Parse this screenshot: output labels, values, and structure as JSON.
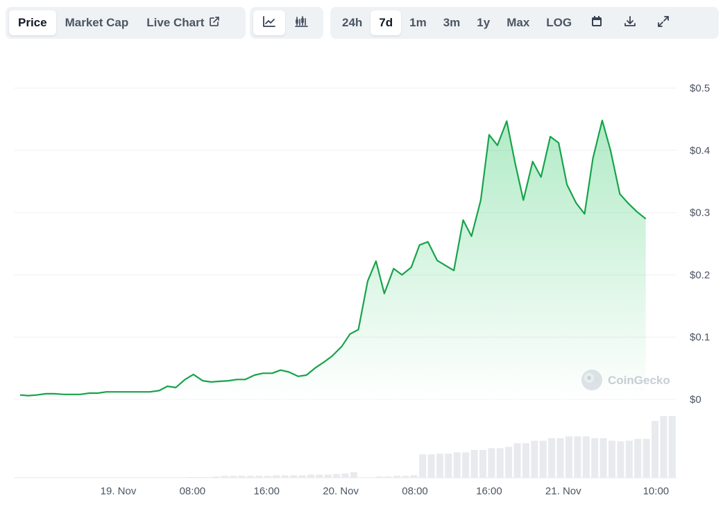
{
  "toolbar": {
    "views": [
      "Price",
      "Market Cap",
      "Live Chart"
    ],
    "active_view": "Price",
    "chart_modes": [
      "line-chart-icon",
      "candlestick-chart-icon"
    ],
    "active_mode": "line-chart-icon",
    "ranges": [
      "24h",
      "7d",
      "1m",
      "3m",
      "1y",
      "Max",
      "LOG"
    ],
    "active_range": "7d",
    "tools": [
      "calendar-icon",
      "download-icon",
      "expand-icon"
    ]
  },
  "watermark": "CoinGecko",
  "colors": {
    "line": "#16a34a",
    "fill": "#22c55e",
    "volume": "#e8eaee",
    "grid": "#eef0f3",
    "axis_text": "#4b5563"
  },
  "chart_data": {
    "type": "area",
    "x_tick_labels": [
      "19. Nov",
      "08:00",
      "16:00",
      "20. Nov",
      "08:00",
      "16:00",
      "21. Nov",
      "10:00"
    ],
    "x_tick_hours": [
      0,
      8,
      16,
      24,
      32,
      40,
      48,
      58
    ],
    "y_tick_labels": [
      "$0",
      "$0.1",
      "$0.2",
      "$0.3",
      "$0.4",
      "$0.5"
    ],
    "ylim": [
      0,
      0.5
    ],
    "y_scale": "linear",
    "grid": true,
    "series": [
      {
        "values": [
          [
            -10.6,
            0.007
          ],
          [
            -9.7,
            0.006
          ],
          [
            -8.8,
            0.007
          ],
          [
            -7.8,
            0.009
          ],
          [
            -6.9,
            0.009
          ],
          [
            -5.9,
            0.008
          ],
          [
            -5.0,
            0.008
          ],
          [
            -4.1,
            0.008
          ],
          [
            -3.1,
            0.01
          ],
          [
            -2.2,
            0.01
          ],
          [
            -1.3,
            0.012
          ],
          [
            -0.3,
            0.012
          ],
          [
            0.6,
            0.012
          ],
          [
            1.6,
            0.012
          ],
          [
            2.5,
            0.012
          ],
          [
            3.4,
            0.012
          ],
          [
            4.4,
            0.014
          ],
          [
            5.3,
            0.021
          ],
          [
            6.2,
            0.019
          ],
          [
            7.2,
            0.032
          ],
          [
            8.1,
            0.04
          ],
          [
            9.1,
            0.03
          ],
          [
            10.0,
            0.028
          ],
          [
            10.9,
            0.029
          ],
          [
            11.9,
            0.03
          ],
          [
            12.8,
            0.032
          ],
          [
            13.7,
            0.032
          ],
          [
            14.7,
            0.039
          ],
          [
            15.6,
            0.042
          ],
          [
            16.6,
            0.042
          ],
          [
            17.5,
            0.047
          ],
          [
            18.4,
            0.044
          ],
          [
            19.4,
            0.037
          ],
          [
            20.3,
            0.039
          ],
          [
            21.2,
            0.05
          ],
          [
            22.2,
            0.06
          ],
          [
            23.1,
            0.07
          ],
          [
            24.1,
            0.085
          ],
          [
            25.0,
            0.105
          ],
          [
            25.9,
            0.112
          ],
          [
            26.9,
            0.19
          ],
          [
            27.8,
            0.222
          ],
          [
            28.7,
            0.17
          ],
          [
            29.7,
            0.21
          ],
          [
            30.6,
            0.2
          ],
          [
            31.6,
            0.212
          ],
          [
            32.5,
            0.248
          ],
          [
            33.4,
            0.253
          ],
          [
            34.4,
            0.223
          ],
          [
            35.3,
            0.215
          ],
          [
            36.2,
            0.207
          ],
          [
            37.2,
            0.288
          ],
          [
            38.1,
            0.262
          ],
          [
            39.1,
            0.32
          ],
          [
            40.0,
            0.425
          ],
          [
            40.9,
            0.408
          ],
          [
            41.9,
            0.447
          ],
          [
            42.8,
            0.38
          ],
          [
            43.7,
            0.32
          ],
          [
            44.7,
            0.382
          ],
          [
            45.6,
            0.357
          ],
          [
            46.6,
            0.422
          ],
          [
            47.5,
            0.412
          ],
          [
            48.4,
            0.345
          ],
          [
            49.4,
            0.315
          ],
          [
            50.3,
            0.298
          ],
          [
            51.2,
            0.387
          ],
          [
            52.2,
            0.448
          ],
          [
            53.1,
            0.4
          ],
          [
            54.1,
            0.33
          ],
          [
            55.0,
            0.315
          ],
          [
            55.9,
            0.302
          ],
          [
            56.9,
            0.29
          ]
        ]
      }
    ],
    "volume_relative": [
      0.0,
      0.0,
      0.0,
      0.0,
      0.0,
      0.0,
      0.0,
      0.0,
      0.0,
      0.0,
      0.0,
      0.0,
      0.0,
      0.0,
      0.0,
      0.0,
      0.0,
      0.0,
      0.0,
      0.0,
      0.01,
      0.01,
      0.01,
      0.02,
      0.03,
      0.03,
      0.03,
      0.03,
      0.03,
      0.03,
      0.04,
      0.04,
      0.04,
      0.04,
      0.05,
      0.05,
      0.05,
      0.06,
      0.07,
      0.09,
      0.0,
      0.0,
      0.02,
      0.02,
      0.03,
      0.03,
      0.04,
      0.38,
      0.38,
      0.39,
      0.39,
      0.41,
      0.41,
      0.45,
      0.45,
      0.48,
      0.48,
      0.5,
      0.56,
      0.56,
      0.6,
      0.6,
      0.64,
      0.64,
      0.67,
      0.67,
      0.67,
      0.64,
      0.64,
      0.6,
      0.59,
      0.6,
      0.63,
      0.63,
      0.92,
      1.0,
      1.0
    ]
  }
}
